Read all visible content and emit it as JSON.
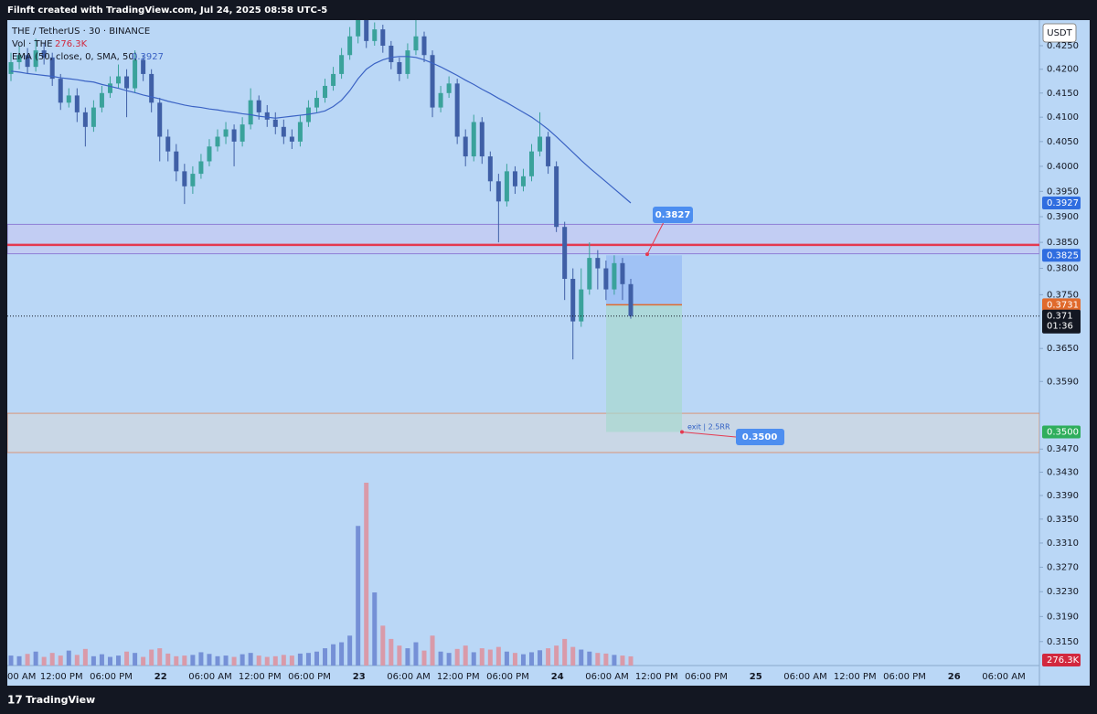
{
  "header": {
    "credit": "Filnft created with TradingView.com, Jul 24, 2025 08:58 UTC-5",
    "brand": "TradingView"
  },
  "chart_data": {
    "type": "candlestick",
    "title": "THE / TetherUS · 30 · BINANCE",
    "currency": "USDT",
    "log_scale": true,
    "ylim": [
      0.3081,
      0.4305
    ],
    "yticks": [
      {
        "value": 0.425,
        "label": "0.4250"
      },
      {
        "value": 0.42,
        "label": "0.4200"
      },
      {
        "value": 0.415,
        "label": "0.4150"
      },
      {
        "value": 0.41,
        "label": "0.4100"
      },
      {
        "value": 0.405,
        "label": "0.4050"
      },
      {
        "value": 0.4,
        "label": "0.4000"
      },
      {
        "value": 0.395,
        "label": "0.3950"
      },
      {
        "value": 0.39,
        "label": "0.3900"
      },
      {
        "value": 0.385,
        "label": "0.3850"
      },
      {
        "value": 0.38,
        "label": "0.3800"
      },
      {
        "value": 0.375,
        "label": "0.3750"
      },
      {
        "value": 0.365,
        "label": "0.3650"
      },
      {
        "value": 0.359,
        "label": "0.3590"
      },
      {
        "value": 0.347,
        "label": "0.3470"
      },
      {
        "value": 0.343,
        "label": "0.3430"
      },
      {
        "value": 0.339,
        "label": "0.3390"
      },
      {
        "value": 0.335,
        "label": "0.3350"
      },
      {
        "value": 0.331,
        "label": "0.3310"
      },
      {
        "value": 0.327,
        "label": "0.3270"
      },
      {
        "value": 0.323,
        "label": "0.3230"
      },
      {
        "value": 0.319,
        "label": "0.3190"
      },
      {
        "value": 0.315,
        "label": "0.3150"
      }
    ],
    "time_labels": [
      "00 AM",
      "12:00 PM",
      "06:00 PM",
      "22",
      "06:00 AM",
      "12:00 PM",
      "06:00 PM",
      "23",
      "06:00 AM",
      "12:00 PM",
      "06:00 PM",
      "24",
      "06:00 AM",
      "12:00 PM",
      "06:00 PM",
      "25",
      "06:00 AM",
      "12:00 PM",
      "06:00 PM",
      "26",
      "06:00 AM"
    ],
    "up_color": "#3aa29b",
    "down_color": "#3f5fa6",
    "open": [
      0.419,
      0.4215,
      0.423,
      0.4205,
      0.424,
      0.4225,
      0.418,
      0.413,
      0.4145,
      0.411,
      0.408,
      0.412,
      0.415,
      0.417,
      0.4185,
      0.416,
      0.422,
      0.419,
      0.413,
      0.406,
      0.403,
      0.399,
      0.396,
      0.3985,
      0.401,
      0.404,
      0.406,
      0.4075,
      0.405,
      0.4085,
      0.4135,
      0.411,
      0.4095,
      0.408,
      0.406,
      0.405,
      0.409,
      0.412,
      0.414,
      0.4165,
      0.419,
      0.423,
      0.427,
      0.431,
      0.426,
      0.4285,
      0.425,
      0.4215,
      0.419,
      0.424,
      0.427,
      0.423,
      0.412,
      0.415,
      0.417,
      0.406,
      0.402,
      0.409,
      0.402,
      0.397,
      0.393,
      0.399,
      0.396,
      0.398,
      0.403,
      0.406,
      0.4,
      0.388,
      0.378,
      0.37,
      0.376,
      0.382,
      0.38,
      0.376,
      0.381,
      0.377
    ],
    "high": [
      0.4235,
      0.425,
      0.4245,
      0.4265,
      0.4255,
      0.4235,
      0.419,
      0.416,
      0.416,
      0.412,
      0.4135,
      0.4165,
      0.4185,
      0.421,
      0.42,
      0.424,
      0.423,
      0.42,
      0.414,
      0.4075,
      0.4045,
      0.4005,
      0.4,
      0.4025,
      0.4055,
      0.4075,
      0.409,
      0.4085,
      0.41,
      0.416,
      0.4145,
      0.4125,
      0.411,
      0.4095,
      0.4075,
      0.4105,
      0.4135,
      0.4155,
      0.418,
      0.4205,
      0.4245,
      0.429,
      0.433,
      0.432,
      0.43,
      0.4295,
      0.426,
      0.4225,
      0.4255,
      0.431,
      0.428,
      0.424,
      0.4165,
      0.4185,
      0.418,
      0.4075,
      0.4105,
      0.41,
      0.403,
      0.3985,
      0.4005,
      0.4,
      0.3995,
      0.4045,
      0.411,
      0.407,
      0.401,
      0.389,
      0.38,
      0.38,
      0.385,
      0.3835,
      0.3815,
      0.3825,
      0.382,
      0.378
    ],
    "low": [
      0.4175,
      0.42,
      0.419,
      0.4195,
      0.421,
      0.4165,
      0.4115,
      0.412,
      0.409,
      0.404,
      0.407,
      0.411,
      0.414,
      0.416,
      0.41,
      0.415,
      0.4175,
      0.411,
      0.401,
      0.401,
      0.397,
      0.3925,
      0.3945,
      0.3975,
      0.4,
      0.403,
      0.4045,
      0.4,
      0.404,
      0.4075,
      0.4095,
      0.408,
      0.4065,
      0.4045,
      0.4035,
      0.404,
      0.408,
      0.411,
      0.413,
      0.4155,
      0.418,
      0.422,
      0.4255,
      0.4245,
      0.425,
      0.4235,
      0.42,
      0.4175,
      0.418,
      0.423,
      0.4215,
      0.41,
      0.411,
      0.414,
      0.4045,
      0.4,
      0.401,
      0.4005,
      0.395,
      0.385,
      0.392,
      0.3945,
      0.395,
      0.397,
      0.402,
      0.3985,
      0.387,
      0.374,
      0.363,
      0.369,
      0.375,
      0.376,
      0.374,
      0.375,
      0.374,
      0.3705
    ],
    "close": [
      0.4215,
      0.423,
      0.4205,
      0.424,
      0.4225,
      0.418,
      0.413,
      0.4145,
      0.411,
      0.408,
      0.412,
      0.415,
      0.417,
      0.4185,
      0.416,
      0.422,
      0.419,
      0.413,
      0.406,
      0.403,
      0.399,
      0.396,
      0.3985,
      0.401,
      0.404,
      0.406,
      0.4075,
      0.405,
      0.4085,
      0.4135,
      0.411,
      0.4095,
      0.408,
      0.406,
      0.405,
      0.409,
      0.412,
      0.414,
      0.4165,
      0.419,
      0.423,
      0.427,
      0.431,
      0.426,
      0.4285,
      0.425,
      0.4215,
      0.419,
      0.424,
      0.427,
      0.423,
      0.412,
      0.415,
      0.417,
      0.406,
      0.402,
      0.409,
      0.402,
      0.397,
      0.393,
      0.399,
      0.396,
      0.398,
      0.403,
      0.406,
      0.4,
      0.388,
      0.378,
      0.37,
      0.376,
      0.382,
      0.38,
      0.376,
      0.381,
      0.377,
      0.371
    ],
    "volume": {
      "name": "Vol · THE",
      "up_color": "#7590d6",
      "down_color": "#d99aa9",
      "values": [
        300000,
        280000,
        350000,
        420000,
        260000,
        380000,
        300000,
        450000,
        320000,
        500000,
        280000,
        340000,
        260000,
        300000,
        420000,
        380000,
        260000,
        480000,
        520000,
        360000,
        280000,
        300000,
        320000,
        400000,
        350000,
        280000,
        300000,
        260000,
        340000,
        380000,
        300000,
        260000,
        280000,
        320000,
        300000,
        360000,
        380000,
        420000,
        520000,
        640000,
        700000,
        900000,
        4200000,
        5500000,
        2200000,
        1200000,
        800000,
        600000,
        520000,
        700000,
        450000,
        900000,
        420000,
        380000,
        500000,
        600000,
        400000,
        520000,
        480000,
        560000,
        420000,
        380000,
        340000,
        400000,
        460000,
        520000,
        600000,
        800000,
        560000,
        480000,
        420000,
        380000,
        360000,
        320000,
        300000,
        276300
      ],
      "value_labels": {
        "75": "276.3K"
      }
    },
    "ma": {
      "name": "EMA (50, close, 0, SMA, 50)",
      "color": "#3b63c4",
      "values": [
        0.4196,
        0.4194,
        0.4191,
        0.4189,
        0.4187,
        0.4185,
        0.4182,
        0.418,
        0.4178,
        0.4175,
        0.4173,
        0.4168,
        0.4164,
        0.416,
        0.4155,
        0.4151,
        0.4146,
        0.4142,
        0.4138,
        0.4133,
        0.4129,
        0.4125,
        0.4122,
        0.412,
        0.4117,
        0.4115,
        0.4112,
        0.411,
        0.4107,
        0.4105,
        0.4102,
        0.41,
        0.4098,
        0.41,
        0.4102,
        0.4104,
        0.4106,
        0.4109,
        0.4113,
        0.4122,
        0.4135,
        0.4155,
        0.418,
        0.42,
        0.4212,
        0.422,
        0.4225,
        0.4227,
        0.4227,
        0.4225,
        0.422,
        0.4213,
        0.4205,
        0.4196,
        0.4187,
        0.4177,
        0.4168,
        0.4158,
        0.4149,
        0.4139,
        0.413,
        0.412,
        0.411,
        0.41,
        0.4088,
        0.4075,
        0.406,
        0.4044,
        0.4028,
        0.4012,
        0.3997,
        0.3983,
        0.3969,
        0.3955,
        0.3941,
        0.3927
      ]
    },
    "resistance_zone": [
      0.3885,
      0.3828
    ],
    "resistance_line": 0.3845,
    "support_zone": [
      0.3533,
      0.3464
    ],
    "position": {
      "entry": 0.3731,
      "stop": 0.3825,
      "target": {
        "value": 0.35,
        "label": "0.3500"
      },
      "exit_note": "exit | 2.5RR"
    },
    "callout": 0.3827,
    "countdown": "01:36"
  }
}
